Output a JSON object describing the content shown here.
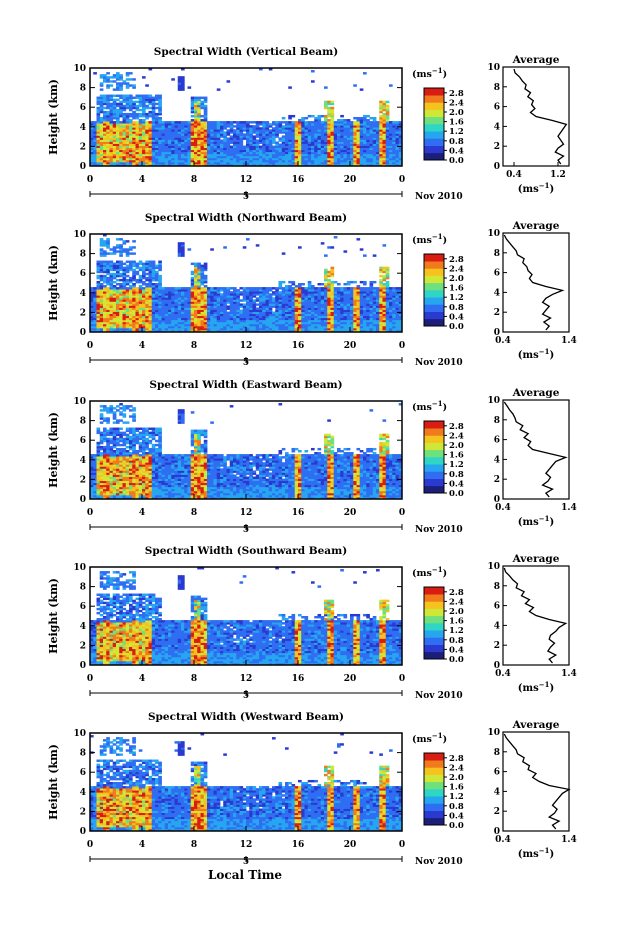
{
  "xlabel": "Local Time",
  "colorbar_unit": "(ms",
  "colorbar_unit_sup": "−1",
  "colorbar_unit_close": ")",
  "avg_title": "Average",
  "avg_xlabel": "(ms",
  "avg_xlabel_close": ")",
  "date_label": "Nov 2010",
  "day_label": "5",
  "colormap": [
    "#1b1f7a",
    "#2a3ad0",
    "#2f6ef2",
    "#27a6f0",
    "#2fd6c6",
    "#6ee07e",
    "#cfe838",
    "#f6c21d",
    "#f07a1c",
    "#d91d12"
  ],
  "chart_data": [
    {
      "type": "heatmap",
      "title": "Spectral Width (Vertical Beam)",
      "ylabel": "Height (km)",
      "xlim": [
        0,
        24
      ],
      "ylim": [
        0,
        10
      ],
      "xticks": [
        "0",
        "4",
        "8",
        "12",
        "16",
        "20",
        "0"
      ],
      "yticks": [
        "0",
        "2",
        "4",
        "6",
        "8",
        "10"
      ],
      "colorbar_ticks": [
        "0.0",
        "0.4",
        "0.8",
        "1.2",
        "1.6",
        "2.0",
        "2.4",
        "2.8"
      ],
      "colorbar_range": [
        0,
        3.0
      ],
      "average_profile": {
        "xlim": [
          0.2,
          1.4
        ],
        "xticks": [
          "0.4",
          "1.2"
        ],
        "height": [
          0.2,
          0.6,
          1.0,
          1.4,
          1.8,
          2.2,
          2.6,
          3.0,
          3.4,
          3.8,
          4.2,
          4.6,
          5.0,
          5.4,
          5.8,
          6.2,
          6.6,
          7.0,
          7.4,
          7.8,
          8.2,
          8.6,
          9.0,
          9.4,
          9.8
        ],
        "value": [
          1.25,
          1.2,
          1.3,
          1.15,
          1.2,
          1.3,
          1.25,
          1.2,
          1.25,
          1.3,
          1.35,
          1.1,
          0.8,
          0.7,
          0.78,
          0.72,
          0.75,
          0.65,
          0.7,
          0.6,
          0.62,
          0.55,
          0.5,
          0.42,
          0.4
        ]
      }
    },
    {
      "type": "heatmap",
      "title": "Spectral Width (Northward Beam)",
      "ylabel": "Height (km)",
      "xlim": [
        0,
        24
      ],
      "ylim": [
        0,
        10
      ],
      "xticks": [
        "0",
        "4",
        "8",
        "12",
        "16",
        "20",
        "0"
      ],
      "yticks": [
        "0",
        "2",
        "4",
        "6",
        "8",
        "10"
      ],
      "colorbar_ticks": [
        "0.0",
        "0.4",
        "0.8",
        "1.2",
        "1.6",
        "2.0",
        "2.4",
        "2.8"
      ],
      "colorbar_range": [
        0,
        3.0
      ],
      "average_profile": {
        "xlim": [
          0.4,
          1.4
        ],
        "xticks": [
          "0.4",
          "1.4"
        ],
        "height": [
          0.2,
          0.6,
          1.0,
          1.4,
          1.8,
          2.2,
          2.6,
          3.0,
          3.4,
          3.8,
          4.2,
          4.6,
          5.0,
          5.4,
          5.8,
          6.2,
          6.6,
          7.0,
          7.4,
          7.8,
          8.2,
          8.6,
          9.0,
          9.4,
          9.8
        ],
        "value": [
          1.05,
          1.1,
          1.02,
          1.12,
          1.0,
          1.05,
          1.1,
          1.0,
          1.05,
          1.15,
          1.3,
          1.05,
          0.85,
          0.8,
          0.84,
          0.78,
          0.76,
          0.7,
          0.72,
          0.62,
          0.6,
          0.55,
          0.5,
          0.45,
          0.42
        ]
      }
    },
    {
      "type": "heatmap",
      "title": "Spectral Width (Eastward Beam)",
      "ylabel": "Height (km)",
      "xlim": [
        0,
        24
      ],
      "ylim": [
        0,
        10
      ],
      "xticks": [
        "0",
        "4",
        "8",
        "12",
        "16",
        "20",
        "0"
      ],
      "yticks": [
        "0",
        "2",
        "4",
        "6",
        "8",
        "10"
      ],
      "colorbar_ticks": [
        "0.0",
        "0.4",
        "0.8",
        "1.2",
        "1.6",
        "2.0",
        "2.4",
        "2.8"
      ],
      "colorbar_range": [
        0,
        3.0
      ],
      "average_profile": {
        "xlim": [
          0.4,
          1.4
        ],
        "xticks": [
          "0.4",
          "1.4"
        ],
        "height": [
          0.2,
          0.6,
          1.0,
          1.4,
          1.8,
          2.2,
          2.6,
          3.0,
          3.4,
          3.8,
          4.2,
          4.6,
          5.0,
          5.4,
          5.8,
          6.2,
          6.6,
          7.0,
          7.4,
          7.8,
          8.2,
          8.6,
          9.0,
          9.4,
          9.8
        ],
        "value": [
          1.1,
          1.05,
          1.15,
          1.0,
          1.08,
          1.12,
          1.05,
          1.1,
          1.15,
          1.2,
          1.35,
          1.1,
          0.85,
          0.78,
          0.82,
          0.72,
          0.78,
          0.66,
          0.7,
          0.6,
          0.58,
          0.55,
          0.5,
          0.46,
          0.42
        ]
      }
    },
    {
      "type": "heatmap",
      "title": "Spectral Width (Southward Beam)",
      "ylabel": "Height (km)",
      "xlim": [
        0,
        24
      ],
      "ylim": [
        0,
        10
      ],
      "xticks": [
        "0",
        "4",
        "8",
        "12",
        "16",
        "20",
        "0"
      ],
      "yticks": [
        "0",
        "2",
        "4",
        "6",
        "8",
        "10"
      ],
      "colorbar_ticks": [
        "0.0",
        "0.4",
        "0.8",
        "1.2",
        "1.6",
        "2.0",
        "2.4",
        "2.8"
      ],
      "colorbar_range": [
        0,
        3.0
      ],
      "average_profile": {
        "xlim": [
          0.4,
          1.4
        ],
        "xticks": [
          "0.4",
          "1.4"
        ],
        "height": [
          0.2,
          0.6,
          1.0,
          1.4,
          1.8,
          2.2,
          2.6,
          3.0,
          3.4,
          3.8,
          4.2,
          4.6,
          5.0,
          5.4,
          5.8,
          6.2,
          6.6,
          7.0,
          7.4,
          7.8,
          8.2,
          8.6,
          9.0,
          9.4,
          9.8
        ],
        "value": [
          1.15,
          1.1,
          1.2,
          1.08,
          1.12,
          1.18,
          1.1,
          1.12,
          1.2,
          1.25,
          1.35,
          1.1,
          0.9,
          0.8,
          0.86,
          0.74,
          0.8,
          0.68,
          0.72,
          0.6,
          0.62,
          0.55,
          0.5,
          0.44,
          0.42
        ]
      }
    },
    {
      "type": "heatmap",
      "title": "Spectral Width (Westward Beam)",
      "ylabel": "Height (km)",
      "xlim": [
        0,
        24
      ],
      "ylim": [
        0,
        10
      ],
      "xticks": [
        "0",
        "4",
        "8",
        "12",
        "16",
        "20",
        "0"
      ],
      "yticks": [
        "0",
        "2",
        "4",
        "6",
        "8",
        "10"
      ],
      "colorbar_ticks": [
        "0.0",
        "0.4",
        "0.8",
        "1.2",
        "1.6",
        "2.0",
        "2.4",
        "2.8"
      ],
      "colorbar_range": [
        0,
        3.0
      ],
      "average_profile": {
        "xlim": [
          0.4,
          1.4
        ],
        "xticks": [
          "0.4",
          "1.4"
        ],
        "height": [
          0.2,
          0.6,
          1.0,
          1.4,
          1.8,
          2.2,
          2.6,
          3.0,
          3.4,
          3.8,
          4.2,
          4.6,
          5.0,
          5.4,
          5.8,
          6.2,
          6.6,
          7.0,
          7.4,
          7.8,
          8.2,
          8.6,
          9.0,
          9.4,
          9.8
        ],
        "value": [
          1.2,
          1.15,
          1.25,
          1.1,
          1.18,
          1.22,
          1.15,
          1.2,
          1.25,
          1.3,
          1.4,
          1.1,
          0.95,
          0.85,
          0.9,
          0.78,
          0.8,
          0.7,
          0.72,
          0.62,
          0.6,
          0.55,
          0.5,
          0.45,
          0.42
        ]
      }
    }
  ]
}
